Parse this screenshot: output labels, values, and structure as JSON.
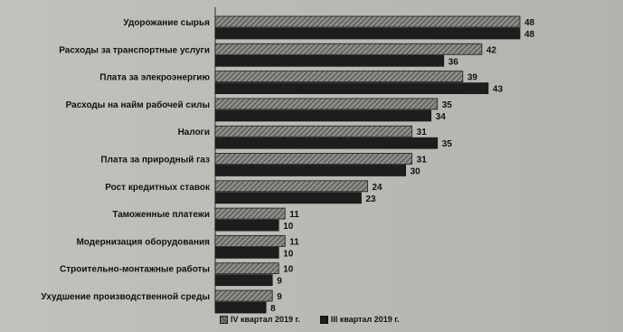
{
  "chart_data": {
    "type": "bar",
    "orientation": "horizontal",
    "categories": [
      "Удорожание сырья",
      "Расходы за транспортные услуги",
      "Плата за элекроэнергию",
      "Расходы на найм рабочей силы",
      "Налоги",
      "Плата за природный газ",
      "Рост кредитных ставок",
      "Таможенные платежи",
      "Модернизация оборудования",
      "Строительно-монтажные работы",
      "Ухудшение производственной среды"
    ],
    "series": [
      {
        "name": "IV квартал 2019 г.",
        "values": [
          48,
          42,
          39,
          35,
          31,
          31,
          24,
          11,
          11,
          10,
          9
        ],
        "color": "#6e6e6a"
      },
      {
        "name": "III квартал 2019 г.",
        "values": [
          48,
          36,
          43,
          34,
          35,
          30,
          23,
          10,
          10,
          9,
          8
        ],
        "color": "#1d1d1d"
      }
    ],
    "xlim": [
      0,
      48
    ],
    "legend_position": "bottom",
    "grid": false
  }
}
